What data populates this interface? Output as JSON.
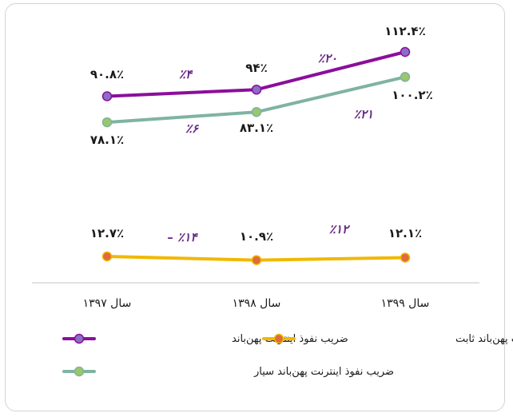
{
  "chart_data": {
    "type": "line",
    "categories": [
      "سال ۱۳۹۷",
      "سال ۱۳۹۸",
      "سال ۱۳۹۹"
    ],
    "ylim": [
      0,
      120
    ],
    "grid": false,
    "legend_position": "bottom",
    "series": [
      {
        "name": "ضریب نفوذ اینترنت پهن‌باند",
        "color": "#8b0e9c",
        "marker_color": "#8a6fc4",
        "values": [
          90.8,
          94,
          112.4
        ],
        "value_labels": [
          "۹۰.۸٪",
          "۹۴٪",
          "۱۱۲.۴٪"
        ],
        "change_labels": [
          "٪۴",
          "٪۲۰"
        ]
      },
      {
        "name": "ضریب نفوذ اینترنت پهن‌باند ثابت",
        "color": "#f0b800",
        "marker_color": "#e06a3a",
        "values": [
          12.7,
          10.9,
          12.1
        ],
        "value_labels": [
          "۱۲.۷٪",
          "۱۰.۹٪",
          "۱۲.۱٪"
        ],
        "change_labels": [
          "٪۱۴ –",
          "٪۱۲"
        ]
      },
      {
        "name": "ضریب نفوذ اینترنت پهن‌باند سیار",
        "color": "#7fb3a4",
        "marker_color": "#9bc66a",
        "values": [
          78.1,
          83.1,
          100.2
        ],
        "value_labels": [
          "۷۸.۱٪",
          "۸۳.۱٪",
          "۱۰۰.۲٪"
        ],
        "change_labels": [
          "٪۶",
          "٪۲۱"
        ]
      }
    ]
  }
}
